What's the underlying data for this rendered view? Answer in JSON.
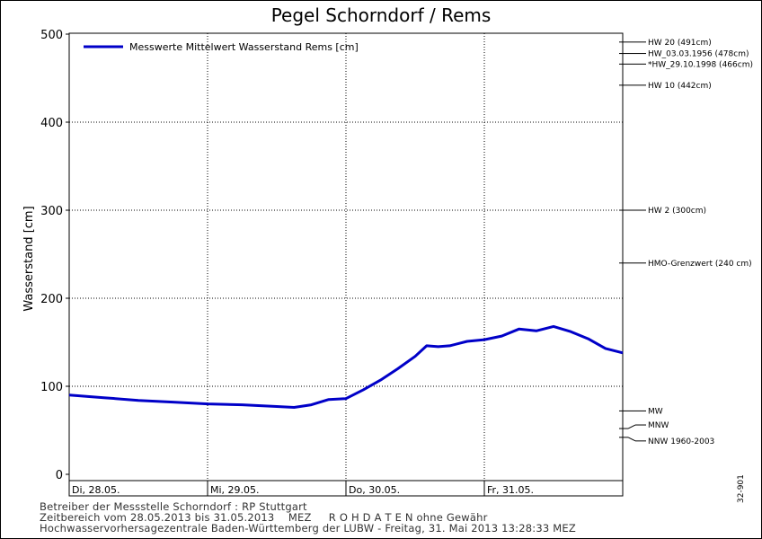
{
  "chart_data": {
    "type": "line",
    "title": "Pegel Schorndorf / Rems",
    "ylabel": "Wasserstand [cm]",
    "ylim": [
      0,
      500
    ],
    "yticks": [
      0,
      100,
      200,
      300,
      400,
      500
    ],
    "x_start": "2013-05-28T00:00",
    "x_end": "2013-06-01T00:00",
    "day_labels": [
      "Di, 28.05.",
      "Mi, 29.05.",
      "Do, 30.05.",
      "Fr, 31.05."
    ],
    "grid": true,
    "legend_position": "top-left",
    "series": [
      {
        "name": "Messwerte Mittelwert Wasserstand Rems [cm]",
        "color": "#0000c8",
        "points": [
          [
            "2013-05-28T00:00",
            90
          ],
          [
            "2013-05-28T06:00",
            87
          ],
          [
            "2013-05-28T12:00",
            84
          ],
          [
            "2013-05-28T18:00",
            82
          ],
          [
            "2013-05-29T00:00",
            80
          ],
          [
            "2013-05-29T06:00",
            79
          ],
          [
            "2013-05-29T12:00",
            77
          ],
          [
            "2013-05-29T15:00",
            76
          ],
          [
            "2013-05-29T18:00",
            79
          ],
          [
            "2013-05-29T21:00",
            85
          ],
          [
            "2013-05-30T00:00",
            86
          ],
          [
            "2013-05-30T03:00",
            96
          ],
          [
            "2013-05-30T06:00",
            107
          ],
          [
            "2013-05-30T09:00",
            120
          ],
          [
            "2013-05-30T12:00",
            134
          ],
          [
            "2013-05-30T14:00",
            146
          ],
          [
            "2013-05-30T16:00",
            145
          ],
          [
            "2013-05-30T18:00",
            146
          ],
          [
            "2013-05-30T21:00",
            151
          ],
          [
            "2013-05-31T00:00",
            153
          ],
          [
            "2013-05-31T03:00",
            157
          ],
          [
            "2013-05-31T06:00",
            165
          ],
          [
            "2013-05-31T09:00",
            163
          ],
          [
            "2013-05-31T12:00",
            168
          ],
          [
            "2013-05-31T15:00",
            162
          ],
          [
            "2013-05-31T18:00",
            154
          ],
          [
            "2013-05-31T21:00",
            143
          ],
          [
            "2013-06-01T00:00",
            138
          ]
        ]
      }
    ],
    "reference_lines": [
      {
        "label": "HW 20 (491cm)",
        "value": 491
      },
      {
        "label": "HW_03.03.1956 (478cm)",
        "value": 478
      },
      {
        "label": "*HW_29.10.1998 (466cm)",
        "value": 466
      },
      {
        "label": "HW 10 (442cm)",
        "value": 442
      },
      {
        "label": "HW 2 (300cm)",
        "value": 300
      },
      {
        "label": "HMO-Grenzwert (240 cm)",
        "value": 240
      },
      {
        "label": "MW",
        "value": 72
      },
      {
        "label": "MNW",
        "value": 52
      },
      {
        "label": "NNW 1960-2003",
        "value": 42
      }
    ]
  },
  "footer": {
    "line1": "Betreiber der Messstelle Schorndorf : RP Stuttgart",
    "line2": "Zeitbereich vom 28.05.2013 bis 31.05.2013    MEZ     R O H D A T E N ohne Gewähr",
    "line3": "Hochwasservorhersagezentrale Baden-Württemberg der LUBW - Freitag, 31. Mai 2013 13:28:33 MEZ",
    "code": "32-901"
  }
}
